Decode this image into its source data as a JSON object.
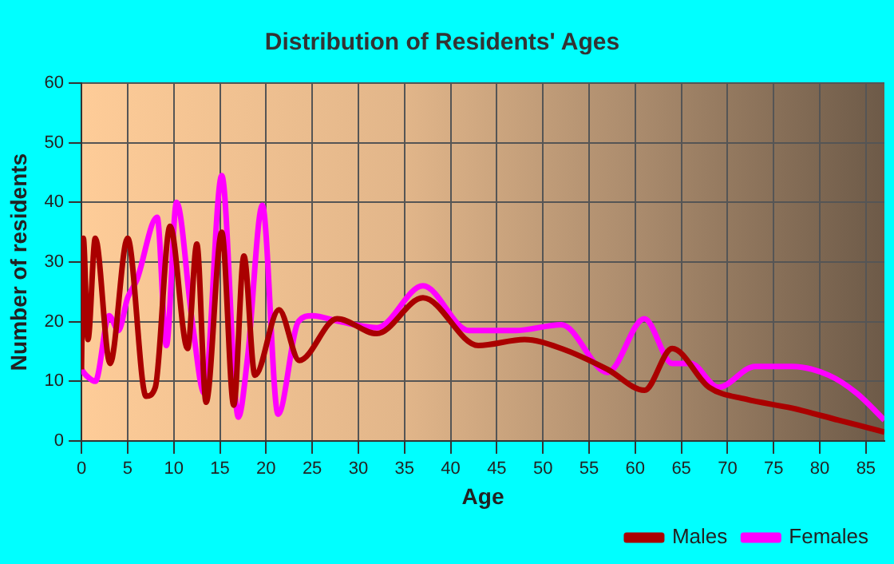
{
  "chart_data": {
    "type": "line",
    "title": "Distribution of Residents' Ages",
    "xlabel": "Age",
    "ylabel": "Number of residents",
    "xlim": [
      0,
      87
    ],
    "xticks": [
      0,
      5,
      10,
      15,
      20,
      25,
      30,
      35,
      40,
      45,
      50,
      55,
      60,
      65,
      70,
      75,
      80,
      85
    ],
    "ylim": [
      0,
      60
    ],
    "yticks": [
      0,
      10,
      20,
      30,
      40,
      50,
      60
    ],
    "grid": true,
    "legend": "bottom right",
    "marker": "none",
    "line_style": "solid",
    "series": [
      {
        "name": "Males",
        "color": "#aa0000",
        "x": [
          0,
          0.2,
          0.7,
          1.5,
          3.1,
          5,
          7,
          8,
          9.6,
          11.5,
          12.5,
          13.5,
          15.2,
          16.5,
          17.6,
          18.8,
          21.4,
          23.6,
          27.7,
          32,
          37,
          43,
          48,
          52,
          57,
          61,
          64,
          68,
          72,
          77,
          82,
          87
        ],
        "values": [
          12,
          34,
          17,
          34,
          13,
          34,
          7.5,
          9,
          36,
          15.5,
          33,
          6.5,
          35,
          6,
          31,
          11,
          22,
          13.5,
          20.5,
          18,
          24,
          16,
          17,
          15.5,
          12,
          8.5,
          15.5,
          9,
          7,
          5.5,
          3.5,
          1.5
        ]
      },
      {
        "name": "Females",
        "color": "#ff00ff",
        "x": [
          0,
          0.5,
          1.5,
          3,
          4,
          5,
          6,
          8.2,
          9.2,
          10.3,
          12,
          13.3,
          15.2,
          17,
          18,
          19.6,
          21.3,
          23.5,
          25,
          28,
          32,
          37,
          42,
          47,
          52,
          57,
          61,
          64,
          66,
          69,
          73,
          77,
          81,
          84,
          87
        ],
        "values": [
          12,
          11,
          10,
          21,
          18.5,
          24,
          27,
          37.5,
          16,
          40,
          20,
          8,
          44.5,
          4,
          14,
          39.5,
          4.5,
          20,
          21,
          20,
          19,
          26,
          18.5,
          18.5,
          19.5,
          11.5,
          20.5,
          13,
          13,
          9,
          12.5,
          12.5,
          11,
          8,
          3.5
        ]
      }
    ]
  }
}
